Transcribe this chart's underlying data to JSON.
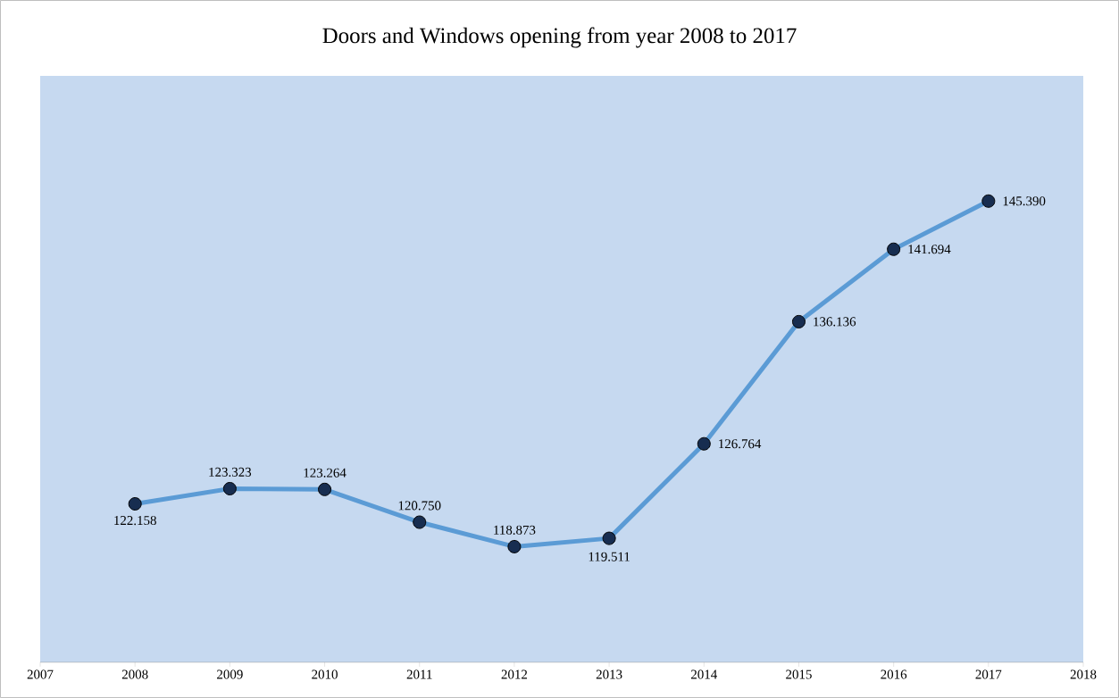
{
  "chart_data": {
    "type": "line",
    "title": "Doors and Windows opening from year 2008 to 2017",
    "x": [
      2008,
      2009,
      2010,
      2011,
      2012,
      2013,
      2014,
      2015,
      2016,
      2017
    ],
    "series": [
      {
        "color": "#5b9bd5",
        "values": [
          122.158,
          123.323,
          123.264,
          120.75,
          118.873,
          119.511,
          126.764,
          136.136,
          141.694,
          145.39
        ],
        "value_labels": [
          "122.158",
          "123.323",
          "123.264",
          "120.750",
          "118.873",
          "119.511",
          "126.764",
          "136.136",
          "141.694",
          "145.390"
        ]
      }
    ],
    "xlim": [
      2007,
      2018
    ],
    "xticks": [
      2007,
      2008,
      2009,
      2010,
      2011,
      2012,
      2013,
      2014,
      2015,
      2016,
      2017,
      2018
    ],
    "ylim": [
      110,
      155
    ],
    "tick_labels": "x",
    "marker": "circle",
    "line_style": "solid"
  }
}
